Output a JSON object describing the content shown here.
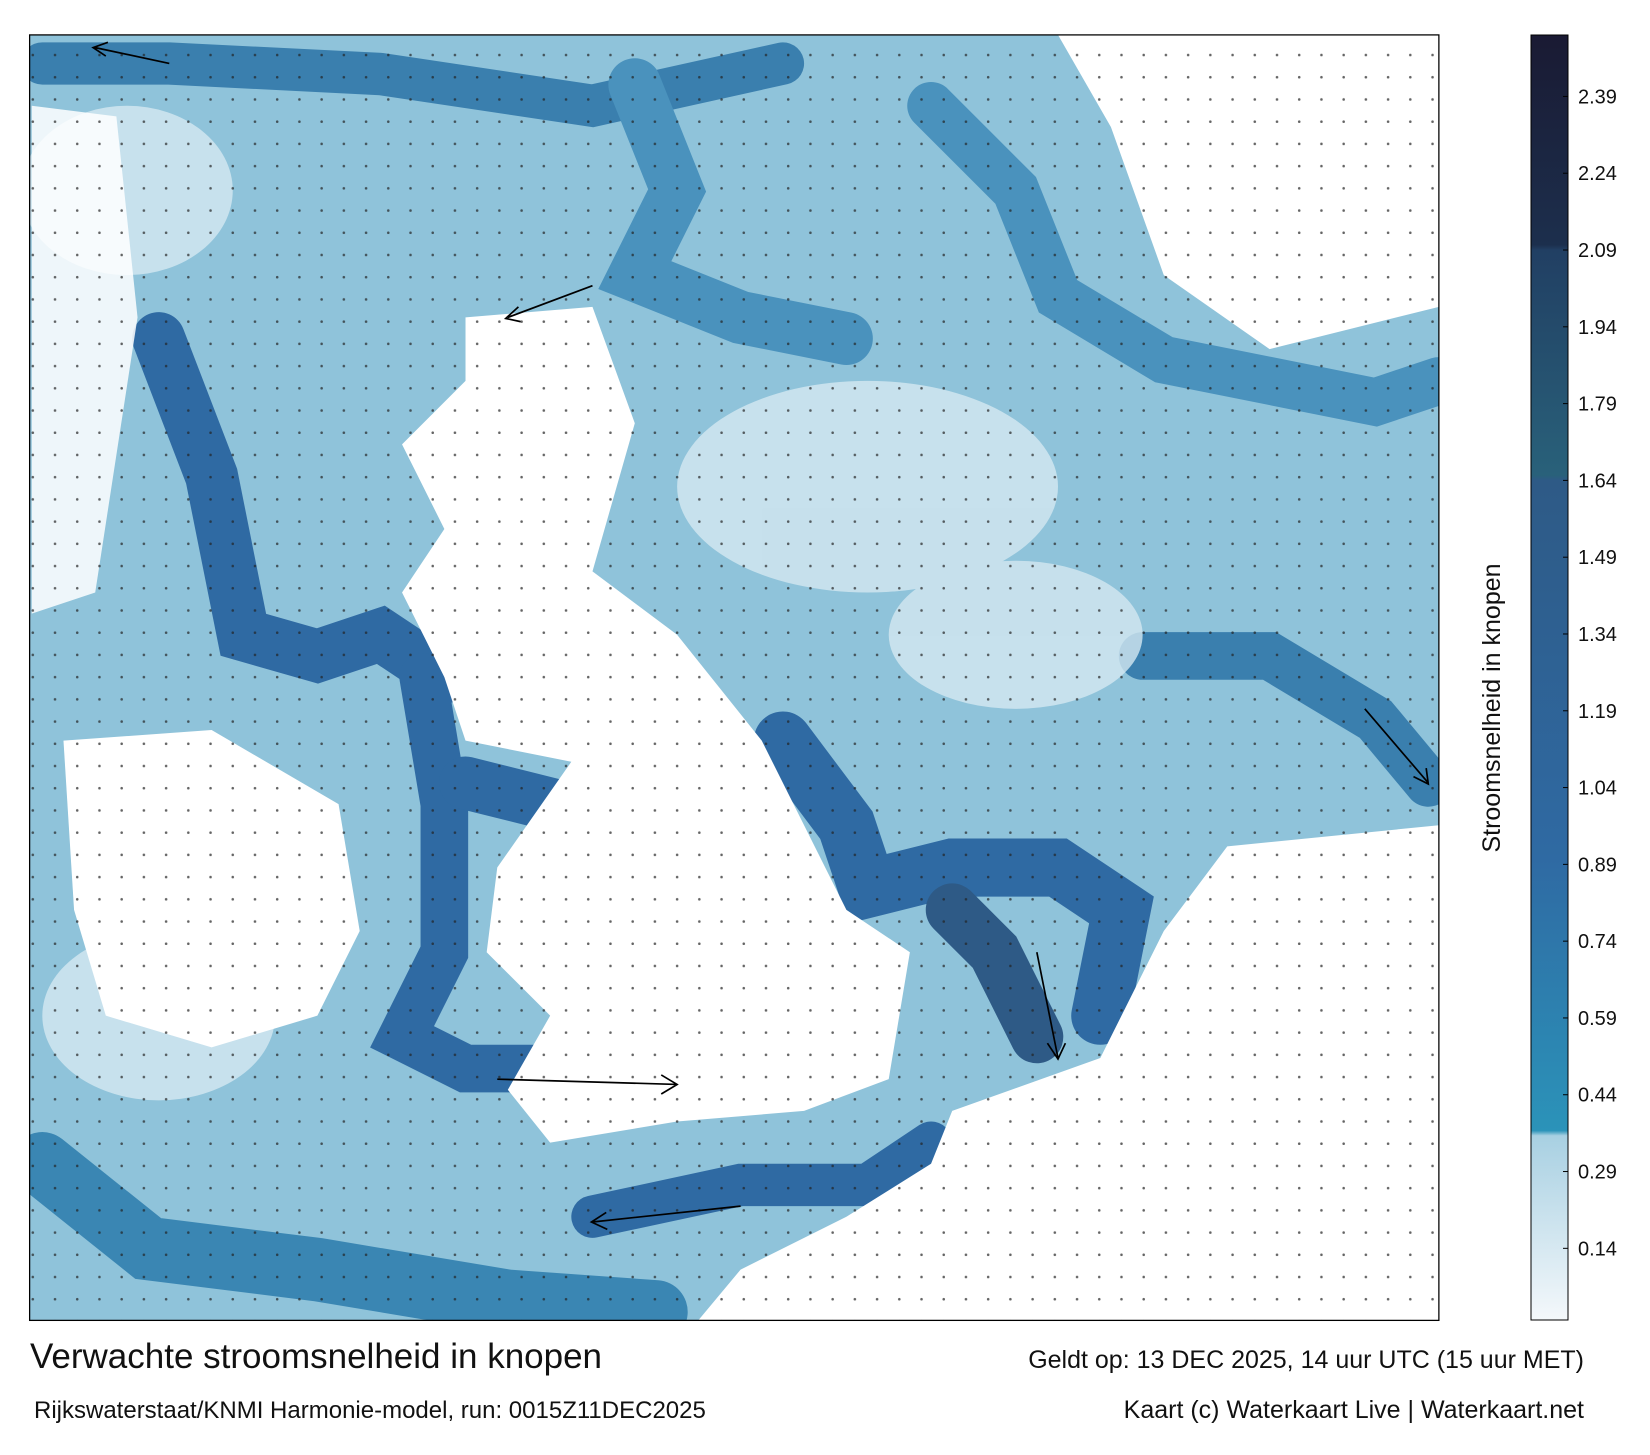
{
  "title": "Verwachte stroomsnelheid in knopen",
  "subtitle": "Rijkswaterstaat/KNMI Harmonie-model, run: 0015Z11DEC2025",
  "valid_time": "Geldt op: 13 DEC 2025, 14 uur UTC (15 uur MET)",
  "credit": "Kaart (c) Waterkaart Live | Waterkaart.net",
  "colorbar": {
    "label": "Stroomsnelheid in knopen",
    "lim": [
      0,
      2.51
    ],
    "ticks": [
      0.14,
      0.29,
      0.44,
      0.59,
      0.74,
      0.89,
      1.04,
      1.19,
      1.34,
      1.49,
      1.64,
      1.79,
      1.94,
      2.09,
      2.24,
      2.39
    ],
    "stops": [
      {
        "value": 0,
        "color": "#f4f8fb"
      },
      {
        "value": 0.36,
        "color": "#a8d0e2"
      },
      {
        "value": 0.37,
        "color": "#2b93b9"
      },
      {
        "value": 0.9,
        "color": "#2f6aa3"
      },
      {
        "value": 1.64,
        "color": "#2e5a86"
      },
      {
        "value": 1.65,
        "color": "#29617a"
      },
      {
        "value": 2.09,
        "color": "#213f63"
      },
      {
        "value": 2.1,
        "color": "#1c2f4d"
      },
      {
        "value": 2.51,
        "color": "#1a1a33"
      }
    ]
  }
}
